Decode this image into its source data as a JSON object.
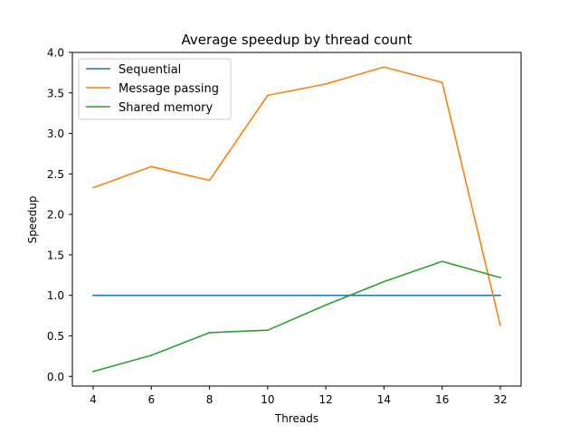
{
  "chart_data": {
    "type": "line",
    "title": "Average speedup by thread count",
    "xlabel": "Threads",
    "ylabel": "Speedup",
    "categories": [
      "4",
      "6",
      "8",
      "10",
      "12",
      "14",
      "16",
      "32"
    ],
    "ylim": [
      -0.12,
      4.0
    ],
    "yticks": [
      "0.0",
      "0.5",
      "1.0",
      "1.5",
      "2.0",
      "2.5",
      "3.0",
      "3.5",
      "4.0"
    ],
    "grid": false,
    "legend_position": "top-left",
    "series": [
      {
        "name": "Sequential",
        "color": "#1f77b4",
        "values": [
          1.0,
          1.0,
          1.0,
          1.0,
          1.0,
          1.0,
          1.0,
          1.0
        ]
      },
      {
        "name": "Message passing",
        "color": "#ff7f0e",
        "values": [
          2.33,
          2.59,
          2.42,
          3.47,
          3.61,
          3.82,
          3.63,
          0.63
        ]
      },
      {
        "name": "Shared memory",
        "color": "#2ca02c",
        "values": [
          0.06,
          0.26,
          0.54,
          0.57,
          0.88,
          1.17,
          1.42,
          1.22
        ]
      }
    ]
  }
}
